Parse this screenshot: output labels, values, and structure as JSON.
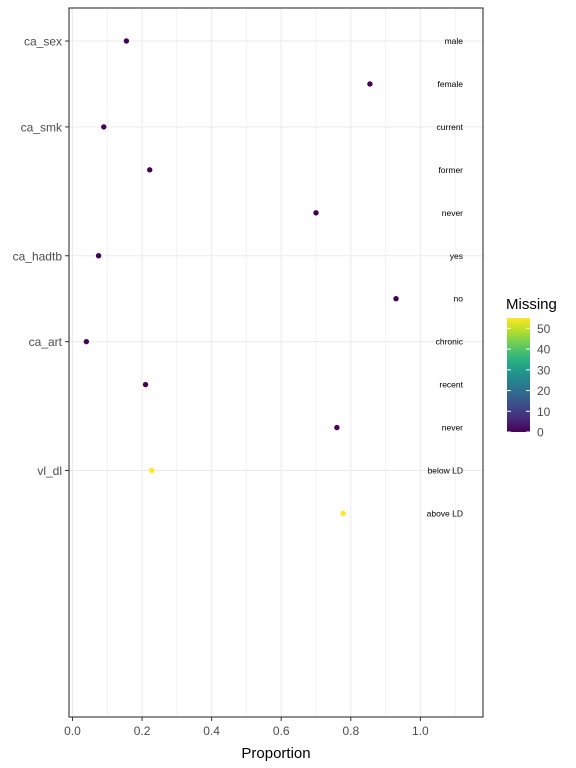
{
  "chart_data": {
    "type": "scatter",
    "xlabel": "Proportion",
    "ylabel": "",
    "xlim": [
      -0.01,
      1.18
    ],
    "x_ticks": [
      0.0,
      0.2,
      0.4,
      0.6,
      0.8,
      1.0
    ],
    "x_tick_labels": [
      "0.0",
      "0.2",
      "0.4",
      "0.6",
      "0.8",
      "1.0"
    ],
    "grid": true,
    "legend_position": "right",
    "groups": [
      "ca_sex",
      "ca_smk",
      "ca_hadtb",
      "ca_art",
      "vl_dl"
    ],
    "points": [
      {
        "group": "ca_sex",
        "level": "male",
        "x": 0.155,
        "missing": 0
      },
      {
        "group": "ca_sex",
        "level": "female",
        "x": 0.855,
        "missing": 0
      },
      {
        "group": "ca_smk",
        "level": "current",
        "x": 0.09,
        "missing": 0
      },
      {
        "group": "ca_smk",
        "level": "former",
        "x": 0.222,
        "missing": 0
      },
      {
        "group": "ca_smk",
        "level": "never",
        "x": 0.7,
        "missing": 0
      },
      {
        "group": "ca_hadtb",
        "level": "yes",
        "x": 0.075,
        "missing": 0
      },
      {
        "group": "ca_hadtb",
        "level": "no",
        "x": 0.93,
        "missing": 0
      },
      {
        "group": "ca_art",
        "level": "chronic",
        "x": 0.04,
        "missing": 0
      },
      {
        "group": "ca_art",
        "level": "recent",
        "x": 0.21,
        "missing": 0
      },
      {
        "group": "ca_art",
        "level": "never",
        "x": 0.76,
        "missing": 0
      },
      {
        "group": "vl_dl",
        "level": "below LD",
        "x": 0.228,
        "missing": 55
      },
      {
        "group": "vl_dl",
        "level": "above LD",
        "x": 0.778,
        "missing": 55
      }
    ],
    "legend": {
      "title": "Missing",
      "min": 0,
      "max": 55,
      "ticks": [
        0,
        10,
        20,
        30,
        40,
        50
      ],
      "colors": [
        "#440154",
        "#482878",
        "#3e4989",
        "#31688e",
        "#26828e",
        "#1f9e89",
        "#35b779",
        "#6ece58",
        "#b5de2b",
        "#fde725"
      ]
    },
    "colors": {
      "panel_border": "#333333",
      "grid": "#ebebeb",
      "axis_text": "#4d4d4d"
    }
  }
}
